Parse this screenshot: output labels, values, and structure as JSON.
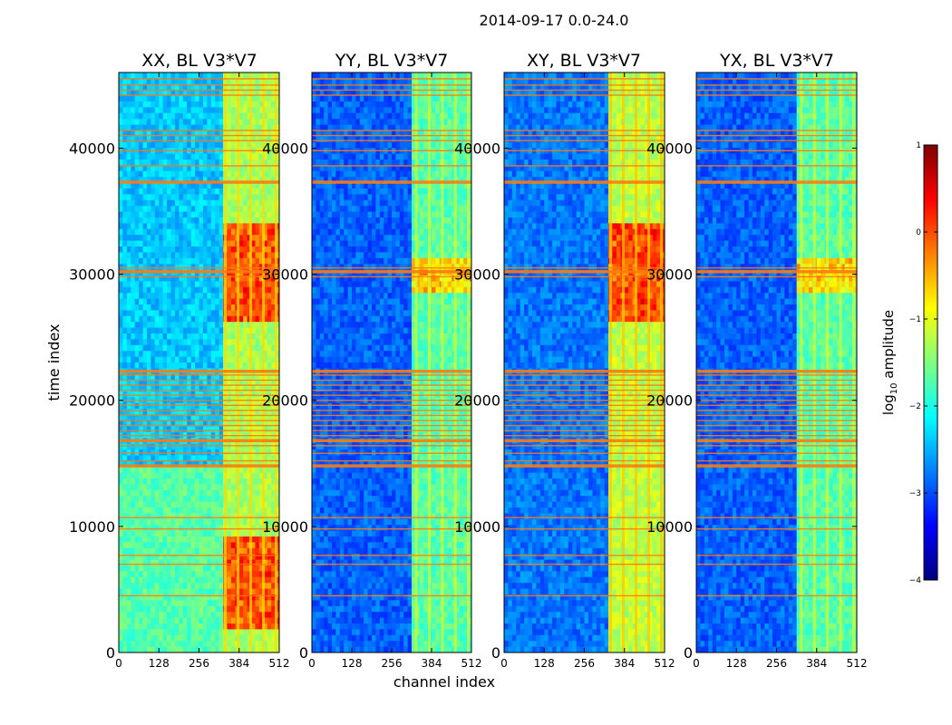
{
  "suptitle": "2014-09-17 0.0-24.0",
  "chart_data": [
    {
      "type": "heatmap",
      "title": "XX, BL V3*V7",
      "xlabel": "",
      "ylabel": "time index",
      "xlim": [
        0,
        512
      ],
      "ylim": [
        0,
        46000
      ],
      "xticks": [
        0,
        128,
        256,
        384,
        512
      ],
      "yticks": [
        0,
        10000,
        20000,
        30000,
        40000
      ],
      "base_level": -2.4,
      "low_region_level": -1.7,
      "low_region_below": 14800,
      "band_channels": [
        330,
        512
      ],
      "band_level": -1.3,
      "hot_time_ranges": [
        [
          26000,
          34000
        ],
        [
          2000,
          9000
        ]
      ],
      "hot_level": 0.3,
      "rfi_row_band": [
        14800,
        22500
      ]
    },
    {
      "type": "heatmap",
      "title": "YY, BL V3*V7",
      "xlabel": "channel index",
      "ylabel": "",
      "xlim": [
        0,
        512
      ],
      "ylim": [
        0,
        46000
      ],
      "xticks": [
        0,
        128,
        256,
        384,
        512
      ],
      "yticks": [
        0,
        10000,
        20000,
        30000,
        40000
      ],
      "base_level": -2.9,
      "band_channels": [
        325,
        512
      ],
      "band_level": -1.7,
      "hot_time_ranges": [
        [
          28500,
          31500
        ]
      ],
      "hot_level": -0.3,
      "rfi_row_band": [
        14800,
        22500
      ]
    },
    {
      "type": "heatmap",
      "title": "XY, BL V3*V7",
      "xlabel": "",
      "ylabel": "",
      "xlim": [
        0,
        512
      ],
      "ylim": [
        0,
        46000
      ],
      "xticks": [
        0,
        128,
        256,
        384,
        512
      ],
      "yticks": [
        0,
        10000,
        20000,
        30000,
        40000
      ],
      "base_level": -2.8,
      "band_channels": [
        330,
        512
      ],
      "band_level": -1.2,
      "hot_time_ranges": [
        [
          26000,
          34000
        ]
      ],
      "hot_level": 0.3,
      "rfi_row_band": [
        14800,
        22500
      ]
    },
    {
      "type": "heatmap",
      "title": "YX, BL V3*V7",
      "xlabel": "",
      "ylabel": "",
      "xlim": [
        0,
        512
      ],
      "ylim": [
        0,
        46000
      ],
      "xticks": [
        0,
        128,
        256,
        384,
        512
      ],
      "yticks": [
        0,
        10000,
        20000,
        30000,
        40000
      ],
      "base_level": -2.9,
      "band_channels": [
        325,
        512
      ],
      "band_level": -1.7,
      "hot_time_ranges": [
        [
          28500,
          31500
        ]
      ],
      "hot_level": -0.4,
      "rfi_row_band": [
        14800,
        22500
      ]
    }
  ],
  "colorbar": {
    "label_prefix": "log",
    "label_sub": "10",
    "label_suffix": " amplitude",
    "range": [
      -4,
      1
    ],
    "ticks": [
      1,
      0,
      -1,
      -2,
      -3,
      -4
    ],
    "tick_labels": [
      "1",
      "0",
      "−1",
      "−2",
      "−3",
      "−4"
    ],
    "colormap": "jet"
  },
  "colors": {
    "rfi_line": "#ff7a10",
    "axis": "#000000"
  }
}
